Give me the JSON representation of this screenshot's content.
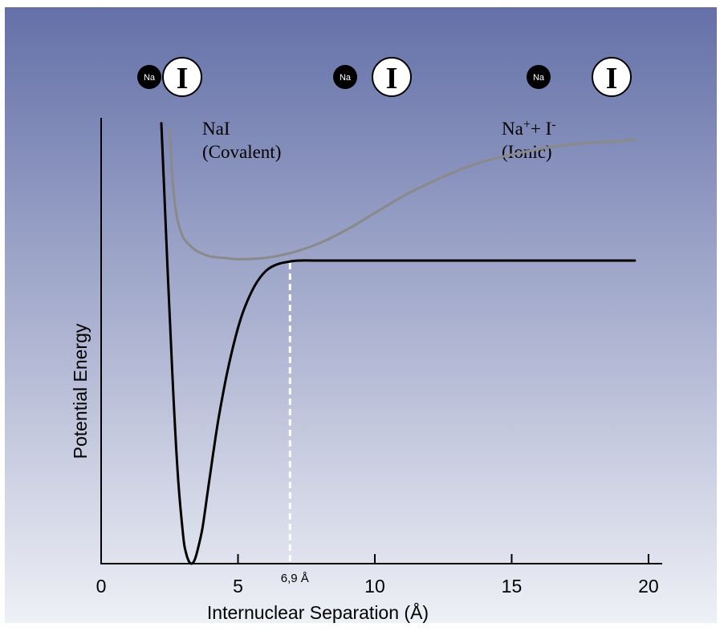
{
  "chart_data": {
    "type": "line",
    "title": "",
    "xlabel": "Internuclear Separation (Å)",
    "ylabel": "Potential Energy",
    "xlim": [
      0,
      20.5
    ],
    "ylim": [
      0,
      16.4
    ],
    "grid": false,
    "x_ticks": [
      0,
      5,
      10,
      15,
      20
    ],
    "x_tick_labels": [
      "0",
      "5",
      "10",
      "15",
      "20"
    ],
    "crossing": {
      "x": 6.9,
      "label": "6,9 Å"
    },
    "series": [
      {
        "name": "NaI (Covalent)",
        "color": "#000000",
        "x": [
          2.2,
          2.4,
          2.6,
          2.8,
          3.0,
          3.1,
          3.2,
          3.3,
          3.4,
          3.5,
          3.7,
          3.9,
          4.1,
          4.3,
          4.6,
          4.9,
          5.2,
          5.6,
          6.0,
          6.4,
          6.8,
          7.2,
          8.0,
          10.0,
          12.0,
          15.0,
          18.0,
          19.5
        ],
        "y": [
          16.2,
          11.5,
          7.0,
          3.3,
          1.0,
          0.4,
          0.1,
          0.0,
          0.1,
          0.4,
          1.3,
          2.7,
          4.1,
          5.4,
          7.0,
          8.3,
          9.3,
          10.2,
          10.75,
          11.0,
          11.1,
          11.15,
          11.15,
          11.15,
          11.15,
          11.15,
          11.15,
          11.15
        ]
      },
      {
        "name": "Na⁺ + I⁻ (Ionic)",
        "color": "#8a8a8a",
        "x": [
          2.5,
          2.6,
          2.7,
          2.8,
          3.0,
          3.2,
          3.5,
          4.0,
          4.5,
          5.0,
          6.0,
          7.0,
          8.0,
          9.0,
          10.0,
          11.0,
          12.0,
          13.0,
          14.0,
          15.0,
          16.0,
          17.0,
          18.0,
          19.0,
          19.5
        ],
        "y": [
          16.0,
          14.2,
          13.2,
          12.6,
          12.0,
          11.75,
          11.5,
          11.3,
          11.25,
          11.2,
          11.25,
          11.45,
          11.8,
          12.3,
          12.9,
          13.5,
          14.0,
          14.45,
          14.8,
          15.05,
          15.25,
          15.4,
          15.5,
          15.55,
          15.6
        ]
      }
    ],
    "annotations": [
      {
        "line1": "NaI",
        "line2": "(Covalent)"
      },
      {
        "line1_parts": [
          "Na",
          "+",
          "+ I",
          "-"
        ],
        "line2": "(Ionic)"
      }
    ],
    "atom_pairs": [
      {
        "small": "Na",
        "large": "I"
      },
      {
        "small": "Na",
        "large": "I"
      },
      {
        "small": "Na",
        "large": "I"
      }
    ]
  },
  "colors": {
    "background_top": "#6470a8",
    "background_bottom": "#eef0f6",
    "covalent_curve": "#000000",
    "ionic_curve": "#8a8a8a",
    "crossing_line": "#ffffff"
  }
}
